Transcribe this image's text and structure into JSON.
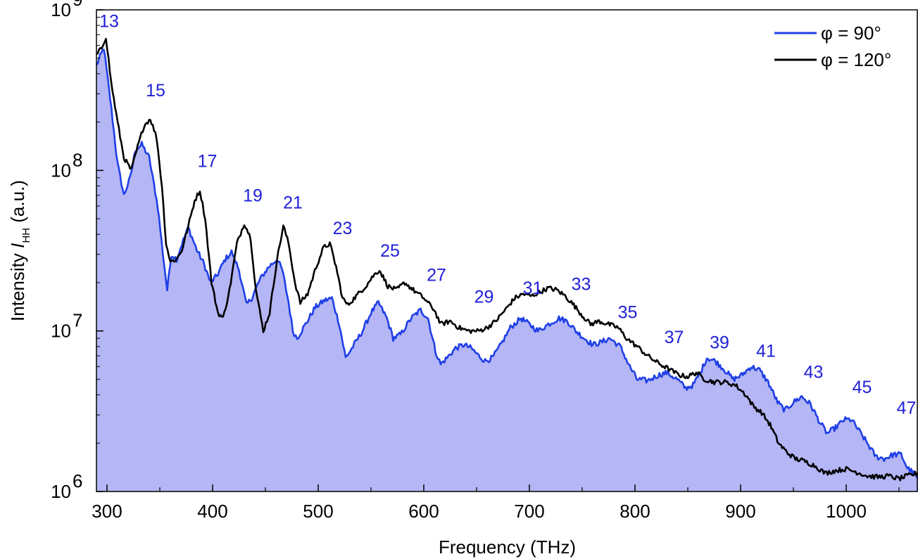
{
  "chart_data": {
    "type": "line",
    "xlabel": "Frequency (THz)",
    "ylabel_prefix": "Intensity ",
    "ylabel_symbol": "I",
    "ylabel_sub": "HH",
    "ylabel_suffix": " (a.u.)",
    "xlim": [
      290,
      1068
    ],
    "ylim": [
      1000000,
      1000000000
    ],
    "yscale": "log",
    "xticks": [
      300,
      400,
      500,
      600,
      700,
      800,
      900,
      1000
    ],
    "yticks": [
      {
        "value": 1000000,
        "base": "10",
        "exp": "6"
      },
      {
        "value": 10000000,
        "base": "10",
        "exp": "7"
      },
      {
        "value": 100000000,
        "base": "10",
        "exp": "8"
      },
      {
        "value": 1000000000,
        "base": "10",
        "exp": "9"
      }
    ],
    "legend_position": "top-right",
    "grid": false,
    "colors": {
      "phi90": "#1f3fe6",
      "phi120": "#000000",
      "fill": "#b4b6f5",
      "harmonic_labels": "#2020d8"
    },
    "series": [
      {
        "name": "φ = 90°",
        "filled": true,
        "points": [
          [
            290,
            450000000.0
          ],
          [
            297,
            580000000.0
          ],
          [
            303,
            280000000.0
          ],
          [
            310,
            110000000.0
          ],
          [
            316,
            70000000.0
          ],
          [
            322,
            90000000.0
          ],
          [
            327,
            135000000.0
          ],
          [
            333,
            145000000.0
          ],
          [
            340,
            120000000.0
          ],
          [
            348,
            60000000.0
          ],
          [
            353,
            30000000.0
          ],
          [
            357,
            18000000.0
          ],
          [
            361,
            30000000.0
          ],
          [
            366,
            28000000.0
          ],
          [
            371,
            35000000.0
          ],
          [
            377,
            44000000.0
          ],
          [
            385,
            32000000.0
          ],
          [
            392,
            26000000.0
          ],
          [
            398,
            20000000.0
          ],
          [
            404,
            22000000.0
          ],
          [
            412,
            28000000.0
          ],
          [
            418,
            31000000.0
          ],
          [
            425,
            24000000.0
          ],
          [
            432,
            14500000.0
          ],
          [
            437,
            16000000.0
          ],
          [
            445,
            21000000.0
          ],
          [
            453,
            25000000.0
          ],
          [
            461,
            28000000.0
          ],
          [
            466,
            24000000.0
          ],
          [
            472,
            15000000.0
          ],
          [
            476,
            10000000.0
          ],
          [
            480,
            9000000.0
          ],
          [
            488,
            11000000.0
          ],
          [
            497,
            14000000.0
          ],
          [
            506,
            15500000.0
          ],
          [
            513,
            16000000.0
          ],
          [
            520,
            11000000.0
          ],
          [
            526,
            6800000.0
          ],
          [
            533,
            8000000.0
          ],
          [
            542,
            10000000.0
          ],
          [
            550,
            13000000.0
          ],
          [
            557,
            15000000.0
          ],
          [
            565,
            12000000.0
          ],
          [
            571,
            9000000.0
          ],
          [
            578,
            9500000.0
          ],
          [
            588,
            12000000.0
          ],
          [
            597,
            13500000.0
          ],
          [
            604,
            12000000.0
          ],
          [
            611,
            7500000.0
          ],
          [
            616,
            6200000.0
          ],
          [
            622,
            6800000.0
          ],
          [
            630,
            7800000.0
          ],
          [
            638,
            8200000.0
          ],
          [
            645,
            7800000.0
          ],
          [
            652,
            7000000.0
          ],
          [
            658,
            6500000.0
          ],
          [
            665,
            6800000.0
          ],
          [
            672,
            8000000.0
          ],
          [
            682,
            10500000.0
          ],
          [
            692,
            12000000.0
          ],
          [
            700,
            11000000.0
          ],
          [
            708,
            10000000.0
          ],
          [
            718,
            11000000.0
          ],
          [
            728,
            12000000.0
          ],
          [
            736,
            11500000.0
          ],
          [
            744,
            10000000.0
          ],
          [
            752,
            9000000.0
          ],
          [
            760,
            8200000.0
          ],
          [
            768,
            8500000.0
          ],
          [
            776,
            9000000.0
          ],
          [
            786,
            8000000.0
          ],
          [
            795,
            6000000.0
          ],
          [
            802,
            5000000.0
          ],
          [
            812,
            4900000.0
          ],
          [
            822,
            5300000.0
          ],
          [
            830,
            5500000.0
          ],
          [
            840,
            5000000.0
          ],
          [
            848,
            4400000.0
          ],
          [
            855,
            4600000.0
          ],
          [
            862,
            5500000.0
          ],
          [
            868,
            6800000.0
          ],
          [
            876,
            6500000.0
          ],
          [
            884,
            5800000.0
          ],
          [
            893,
            5000000.0
          ],
          [
            901,
            5300000.0
          ],
          [
            910,
            6000000.0
          ],
          [
            918,
            5700000.0
          ],
          [
            926,
            4800000.0
          ],
          [
            935,
            3600000.0
          ],
          [
            942,
            3200000.0
          ],
          [
            950,
            3600000.0
          ],
          [
            958,
            3900000.0
          ],
          [
            966,
            3500000.0
          ],
          [
            975,
            2700000.0
          ],
          [
            982,
            2300000.0
          ],
          [
            990,
            2500000.0
          ],
          [
            998,
            2800000.0
          ],
          [
            1005,
            2800000.0
          ],
          [
            1012,
            2400000.0
          ],
          [
            1020,
            2000000.0
          ],
          [
            1028,
            1650000.0
          ],
          [
            1036,
            1600000.0
          ],
          [
            1045,
            1700000.0
          ],
          [
            1052,
            1700000.0
          ],
          [
            1058,
            1400000.0
          ],
          [
            1064,
            1300000.0
          ],
          [
            1068,
            1200000.0
          ]
        ]
      },
      {
        "name": "φ = 120°",
        "filled": false,
        "points": [
          [
            290,
            520000000.0
          ],
          [
            295,
            580000000.0
          ],
          [
            299,
            680000000.0
          ],
          [
            304,
            350000000.0
          ],
          [
            310,
            200000000.0
          ],
          [
            316,
            120000000.0
          ],
          [
            323,
            100000000.0
          ],
          [
            329,
            140000000.0
          ],
          [
            335,
            190000000.0
          ],
          [
            341,
            210000000.0
          ],
          [
            347,
            160000000.0
          ],
          [
            352,
            80000000.0
          ],
          [
            356,
            35000000.0
          ],
          [
            360,
            27000000.0
          ],
          [
            366,
            28000000.0
          ],
          [
            371,
            32000000.0
          ],
          [
            377,
            45000000.0
          ],
          [
            383,
            65000000.0
          ],
          [
            388,
            75000000.0
          ],
          [
            393,
            50000000.0
          ],
          [
            399,
            20000000.0
          ],
          [
            405,
            13000000.0
          ],
          [
            410,
            12000000.0
          ],
          [
            416,
            18000000.0
          ],
          [
            423,
            35000000.0
          ],
          [
            430,
            47000000.0
          ],
          [
            436,
            38000000.0
          ],
          [
            441,
            18000000.0
          ],
          [
            448,
            10000000.0
          ],
          [
            454,
            13000000.0
          ],
          [
            461,
            28000000.0
          ],
          [
            467,
            45000000.0
          ],
          [
            472,
            35000000.0
          ],
          [
            478,
            20000000.0
          ],
          [
            483,
            15000000.0
          ],
          [
            490,
            17000000.0
          ],
          [
            498,
            25000000.0
          ],
          [
            505,
            33000000.0
          ],
          [
            511,
            35000000.0
          ],
          [
            517,
            25000000.0
          ],
          [
            523,
            16000000.0
          ],
          [
            528,
            14500000.0
          ],
          [
            536,
            16500000.0
          ],
          [
            545,
            19000000.0
          ],
          [
            552,
            22000000.0
          ],
          [
            558,
            24000000.0
          ],
          [
            566,
            19000000.0
          ],
          [
            574,
            18000000.0
          ],
          [
            582,
            20000000.0
          ],
          [
            590,
            18000000.0
          ],
          [
            600,
            16000000.0
          ],
          [
            610,
            13500000.0
          ],
          [
            616,
            11000000.0
          ],
          [
            625,
            11500000.0
          ],
          [
            633,
            10500000.0
          ],
          [
            642,
            10000000.0
          ],
          [
            652,
            10000000.0
          ],
          [
            660,
            10500000.0
          ],
          [
            668,
            11500000.0
          ],
          [
            677,
            13500000.0
          ],
          [
            686,
            16000000.0
          ],
          [
            694,
            17000000.0
          ],
          [
            702,
            16500000.0
          ],
          [
            710,
            17500000.0
          ],
          [
            718,
            18500000.0
          ],
          [
            726,
            18000000.0
          ],
          [
            734,
            16500000.0
          ],
          [
            742,
            14500000.0
          ],
          [
            750,
            12500000.0
          ],
          [
            758,
            11000000.0
          ],
          [
            766,
            11500000.0
          ],
          [
            775,
            11000000.0
          ],
          [
            784,
            10500000.0
          ],
          [
            792,
            9000000.0
          ],
          [
            802,
            8000000.0
          ],
          [
            812,
            7000000.0
          ],
          [
            822,
            6300000.0
          ],
          [
            832,
            5800000.0
          ],
          [
            842,
            5300000.0
          ],
          [
            850,
            5200000.0
          ],
          [
            858,
            5500000.0
          ],
          [
            866,
            5000000.0
          ],
          [
            875,
            4800000.0
          ],
          [
            885,
            4800000.0
          ],
          [
            895,
            4600000.0
          ],
          [
            905,
            4000000.0
          ],
          [
            912,
            3400000.0
          ],
          [
            920,
            3100000.0
          ],
          [
            928,
            2600000.0
          ],
          [
            936,
            2000000.0
          ],
          [
            944,
            1750000.0
          ],
          [
            952,
            1600000.0
          ],
          [
            960,
            1550000.0
          ],
          [
            970,
            1450000.0
          ],
          [
            980,
            1300000.0
          ],
          [
            990,
            1350000.0
          ],
          [
            1000,
            1380000.0
          ],
          [
            1010,
            1320000.0
          ],
          [
            1020,
            1250000.0
          ],
          [
            1030,
            1230000.0
          ],
          [
            1040,
            1250000.0
          ],
          [
            1050,
            1200000.0
          ],
          [
            1058,
            1250000.0
          ],
          [
            1064,
            1280000.0
          ],
          [
            1068,
            1300000.0
          ]
        ]
      }
    ],
    "harmonic_labels": [
      {
        "text": "13",
        "x": 302,
        "y": 780000000.0
      },
      {
        "text": "15",
        "x": 346,
        "y": 290000000.0
      },
      {
        "text": "17",
        "x": 395,
        "y": 105000000.0
      },
      {
        "text": "19",
        "x": 438,
        "y": 64000000.0
      },
      {
        "text": "21",
        "x": 476,
        "y": 58000000.0
      },
      {
        "text": "23",
        "x": 523,
        "y": 40000000.0
      },
      {
        "text": "25",
        "x": 568,
        "y": 29000000.0
      },
      {
        "text": "27",
        "x": 612,
        "y": 20500000.0
      },
      {
        "text": "29",
        "x": 657,
        "y": 15000000.0
      },
      {
        "text": "31",
        "x": 703,
        "y": 17000000.0
      },
      {
        "text": "33",
        "x": 749,
        "y": 18000000.0
      },
      {
        "text": "35",
        "x": 793,
        "y": 12000000.0
      },
      {
        "text": "37",
        "x": 837,
        "y": 8400000.0
      },
      {
        "text": "39",
        "x": 880,
        "y": 7800000.0
      },
      {
        "text": "41",
        "x": 924,
        "y": 6900000.0
      },
      {
        "text": "43",
        "x": 969,
        "y": 5100000.0
      },
      {
        "text": "45",
        "x": 1015,
        "y": 4100000.0
      },
      {
        "text": "47",
        "x": 1057,
        "y": 3050000.0
      }
    ]
  }
}
